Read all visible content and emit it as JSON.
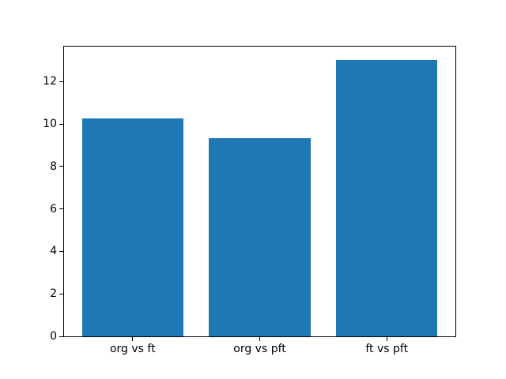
{
  "chart_data": {
    "type": "bar",
    "title": "",
    "xlabel": "",
    "ylabel": "",
    "categories": [
      "org vs ft",
      "org vs pft",
      "ft vs pft"
    ],
    "values": [
      10.25,
      9.35,
      13.0
    ],
    "yticks": [
      0,
      2,
      4,
      6,
      8,
      10,
      12
    ],
    "ylim": [
      0,
      13.65
    ],
    "grid": false,
    "legend": null,
    "colors": {
      "bar": "#1f77b4",
      "spine": "#000000",
      "tick_text": "#000000",
      "background": "#ffffff"
    }
  }
}
